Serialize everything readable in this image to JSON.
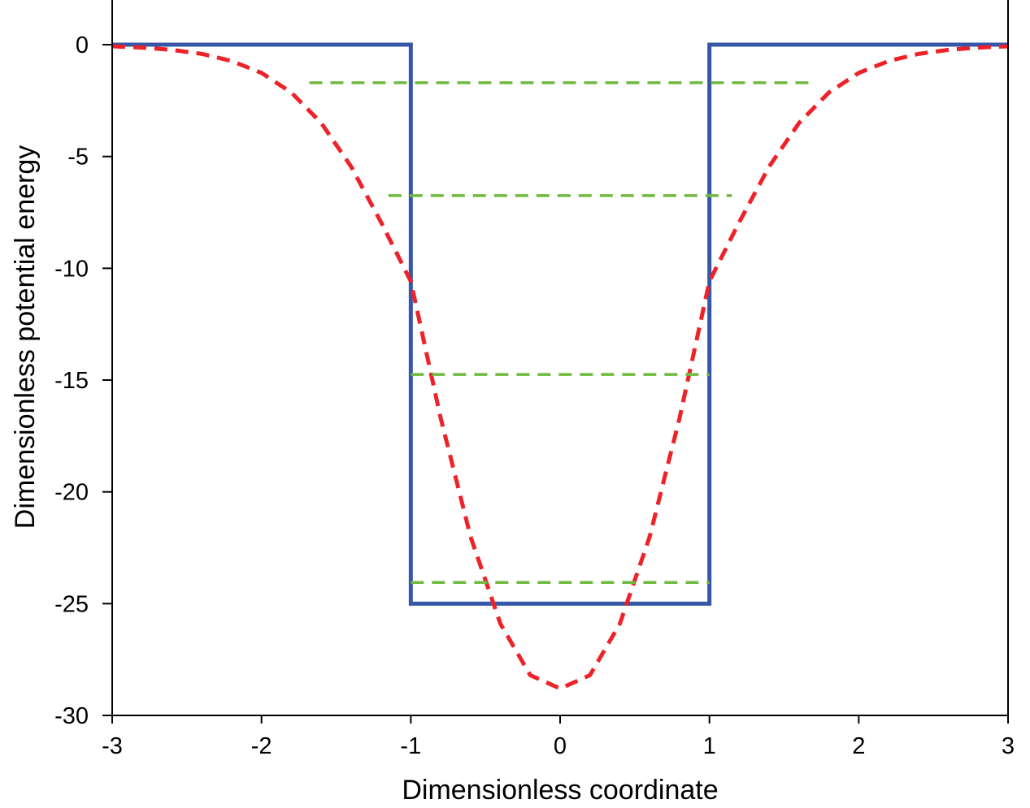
{
  "chart_data": {
    "type": "line",
    "title": "",
    "xlabel": "Dimensionless coordinate",
    "ylabel": "Dimensionless potential energy",
    "xlim": [
      -3,
      3
    ],
    "ylim": [
      -30,
      2
    ],
    "xticks": [
      -3,
      -2,
      -1,
      0,
      1,
      2,
      3
    ],
    "xtick_labels": [
      "-3",
      "-2",
      "-1",
      "0",
      "1",
      "2",
      "3"
    ],
    "yticks": [
      0,
      -5,
      -10,
      -15,
      -20,
      -25,
      -30
    ],
    "ytick_labels": [
      "0",
      "-5",
      "-10",
      "-15",
      "-20",
      "-25",
      "-30"
    ],
    "grid": false,
    "legend": "none",
    "series": [
      {
        "style": "solid",
        "color": "#3656a8",
        "x": [
          -3,
          -1,
          -1,
          1,
          1,
          3
        ],
        "y": [
          0,
          0,
          -25,
          -25,
          0,
          0
        ]
      },
      {
        "style": "dashed",
        "color": "#ee2229",
        "x": [
          -3.0,
          -2.8,
          -2.6,
          -2.4,
          -2.2,
          -2.0,
          -1.8,
          -1.6,
          -1.4,
          -1.2,
          -1.0,
          -0.8,
          -0.6,
          -0.4,
          -0.2,
          0.0,
          0.2,
          0.4,
          0.6,
          0.8,
          1.0,
          1.2,
          1.4,
          1.6,
          1.8,
          2.0,
          2.2,
          2.4,
          2.6,
          2.8,
          3.0
        ],
        "y": [
          -0.07,
          -0.13,
          -0.23,
          -0.41,
          -0.73,
          -1.26,
          -2.14,
          -3.5,
          -5.45,
          -7.93,
          -10.58,
          -16.7,
          -22.0,
          -25.9,
          -28.2,
          -28.8,
          -28.2,
          -25.9,
          -22.0,
          -16.7,
          -10.58,
          -7.93,
          -5.45,
          -3.5,
          -2.14,
          -1.26,
          -0.73,
          -0.41,
          -0.23,
          -0.13,
          -0.07
        ]
      },
      {
        "style": "dashed",
        "color": "#70b93f",
        "x": [
          -1.68,
          1.68
        ],
        "y": [
          -1.7,
          -1.7
        ]
      },
      {
        "style": "dashed",
        "color": "#70b93f",
        "x": [
          -1.15,
          1.15
        ],
        "y": [
          -6.75,
          -6.75
        ]
      },
      {
        "style": "dashed",
        "color": "#70b93f",
        "x": [
          -1.0,
          1.0
        ],
        "y": [
          -14.75,
          -14.75
        ]
      },
      {
        "style": "dashed",
        "color": "#70b93f",
        "x": [
          -1.0,
          1.0
        ],
        "y": [
          -24.05,
          -24.05
        ]
      }
    ]
  }
}
